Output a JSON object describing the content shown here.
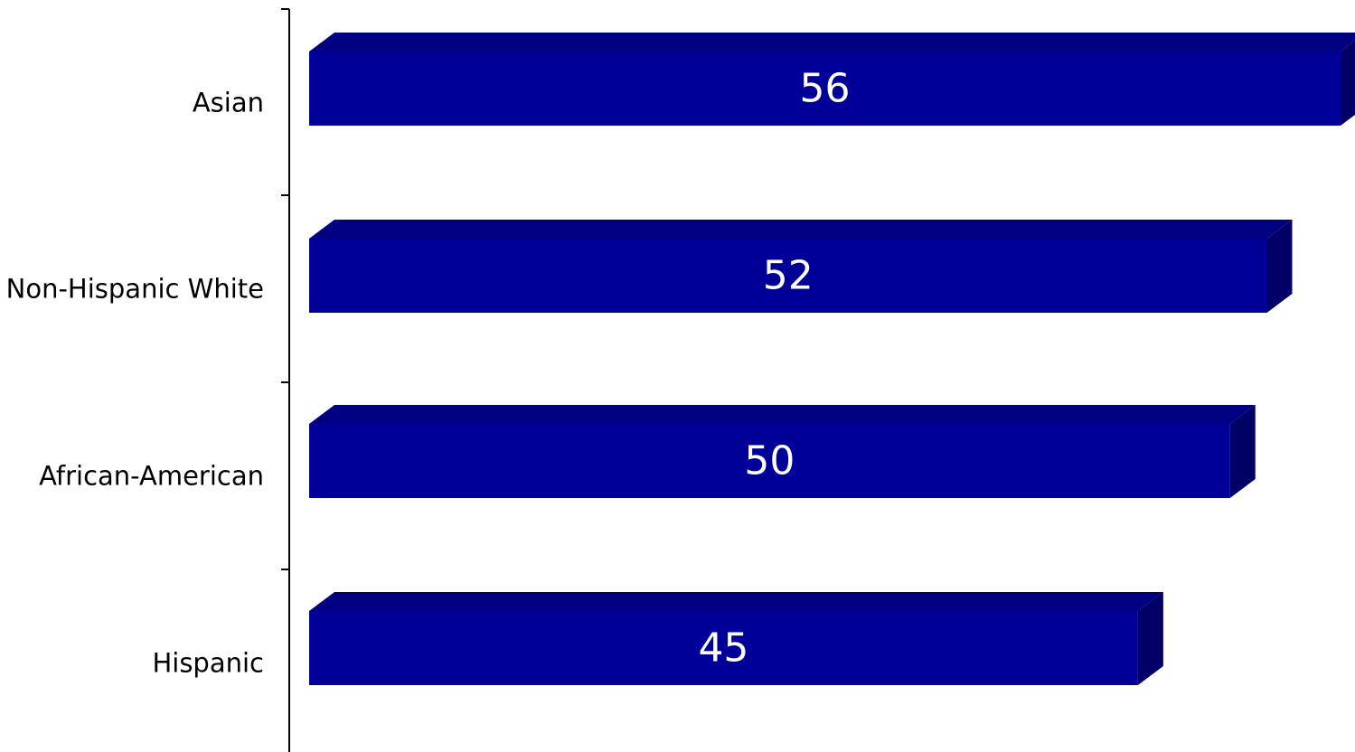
{
  "chart_data": {
    "type": "bar",
    "orientation": "horizontal",
    "style": "3d",
    "categories": [
      "Asian",
      "Non-Hispanic White",
      "African-American",
      "Hispanic"
    ],
    "values": [
      56,
      52,
      50,
      45
    ],
    "data_labels": [
      "56",
      "52",
      "50",
      "45"
    ],
    "title": "",
    "xlabel": "",
    "ylabel": "",
    "xlim": [
      0,
      56
    ],
    "grid": false,
    "legend": "none",
    "colors": {
      "bar_front": "#000099",
      "bar_top": "#000080",
      "bar_side": "#000066",
      "axis": "#000000",
      "label_text": "#000000",
      "value_text": "#ffffff"
    }
  }
}
